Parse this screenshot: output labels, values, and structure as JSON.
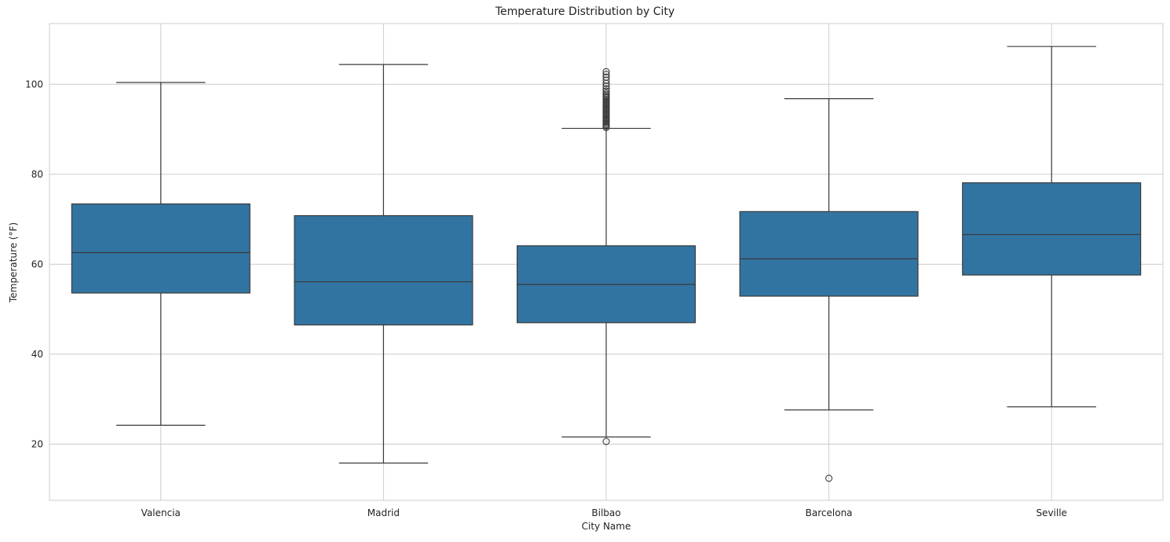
{
  "chart_data": {
    "type": "box",
    "title": "Temperature Distribution by City",
    "xlabel": "City Name",
    "ylabel": "Temperature (°F)",
    "ylim": [
      7.5,
      113.5
    ],
    "yticks": [
      20,
      40,
      60,
      80,
      100
    ],
    "grid": true,
    "color": "#3274a1",
    "categories": [
      "Valencia",
      "Madrid",
      "Bilbao",
      "Barcelona",
      "Seville"
    ],
    "boxes": [
      {
        "name": "Valencia",
        "whisker_low": 24.2,
        "q1": 53.6,
        "median": 62.6,
        "q3": 73.4,
        "whisker_high": 100.4,
        "outliers": []
      },
      {
        "name": "Madrid",
        "whisker_low": 15.8,
        "q1": 46.5,
        "median": 56.1,
        "q3": 70.8,
        "whisker_high": 104.4,
        "outliers": []
      },
      {
        "name": "Bilbao",
        "whisker_low": 21.6,
        "q1": 47.0,
        "median": 55.5,
        "q3": 64.1,
        "whisker_high": 90.2,
        "outliers": [
          20.6,
          90.4,
          90.7,
          91.0,
          91.3,
          91.6,
          91.9,
          92.2,
          92.5,
          92.8,
          93.1,
          93.4,
          93.7,
          94.0,
          94.3,
          94.6,
          94.9,
          95.2,
          95.5,
          95.8,
          96.1,
          96.4,
          96.7,
          97.0,
          97.3,
          97.6,
          98.0,
          98.5,
          99.0,
          99.6,
          100.2,
          100.9,
          101.6,
          102.2,
          102.8
        ]
      },
      {
        "name": "Barcelona",
        "whisker_low": 27.6,
        "q1": 52.9,
        "median": 61.2,
        "q3": 71.7,
        "whisker_high": 96.8,
        "outliers": [
          12.4
        ]
      },
      {
        "name": "Seville",
        "whisker_low": 28.3,
        "q1": 57.6,
        "median": 66.6,
        "q3": 78.1,
        "whisker_high": 108.4,
        "outliers": []
      }
    ]
  }
}
